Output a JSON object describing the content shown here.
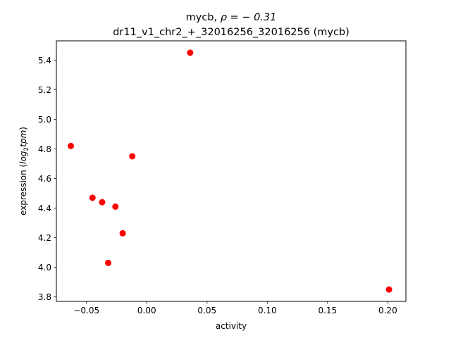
{
  "chart_data": {
    "type": "scatter",
    "title_line1_prefix": "mycb, ",
    "title_line1_rho": "ρ = − 0.31",
    "title_line2": "dr11_v1_chr2_+_32016256_32016256 (mycb)",
    "xlabel": "activity",
    "ylabel_prefix": "expression (",
    "ylabel_log": "log",
    "ylabel_sub": "2",
    "ylabel_tpm": "tpm",
    "ylabel_suffix": ")",
    "xlim": [
      -0.075,
      0.215
    ],
    "ylim": [
      3.77,
      5.53
    ],
    "xticks": [
      {
        "value": -0.05,
        "label": "−0.05"
      },
      {
        "value": 0.0,
        "label": "0.00"
      },
      {
        "value": 0.05,
        "label": "0.05"
      },
      {
        "value": 0.1,
        "label": "0.10"
      },
      {
        "value": 0.15,
        "label": "0.15"
      },
      {
        "value": 0.2,
        "label": "0.20"
      }
    ],
    "yticks": [
      {
        "value": 3.8,
        "label": "3.8"
      },
      {
        "value": 4.0,
        "label": "4.0"
      },
      {
        "value": 4.2,
        "label": "4.2"
      },
      {
        "value": 4.4,
        "label": "4.4"
      },
      {
        "value": 4.6,
        "label": "4.6"
      },
      {
        "value": 4.8,
        "label": "4.8"
      },
      {
        "value": 5.0,
        "label": "5.0"
      },
      {
        "value": 5.2,
        "label": "5.2"
      },
      {
        "value": 5.4,
        "label": "5.4"
      }
    ],
    "grid": false,
    "marker_color": "#ff0000",
    "points": [
      {
        "x": 0.036,
        "y": 5.45
      },
      {
        "x": -0.063,
        "y": 4.82
      },
      {
        "x": -0.012,
        "y": 4.75
      },
      {
        "x": -0.045,
        "y": 4.47
      },
      {
        "x": -0.037,
        "y": 4.44
      },
      {
        "x": -0.026,
        "y": 4.41
      },
      {
        "x": -0.02,
        "y": 4.23
      },
      {
        "x": -0.032,
        "y": 4.03
      },
      {
        "x": 0.201,
        "y": 3.85
      }
    ]
  }
}
